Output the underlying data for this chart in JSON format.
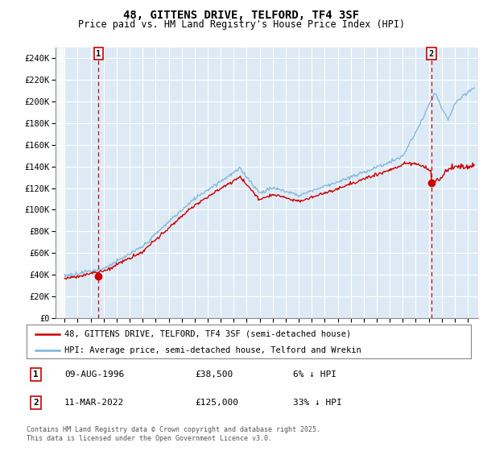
{
  "title": "48, GITTENS DRIVE, TELFORD, TF4 3SF",
  "subtitle": "Price paid vs. HM Land Registry's House Price Index (HPI)",
  "legend_line1": "48, GITTENS DRIVE, TELFORD, TF4 3SF (semi-detached house)",
  "legend_line2": "HPI: Average price, semi-detached house, Telford and Wrekin",
  "footnote": "Contains HM Land Registry data © Crown copyright and database right 2025.\nThis data is licensed under the Open Government Licence v3.0.",
  "sale1_date": "09-AUG-1996",
  "sale1_price": "£38,500",
  "sale1_hpi": "6% ↓ HPI",
  "sale2_date": "11-MAR-2022",
  "sale2_price": "£125,000",
  "sale2_hpi": "33% ↓ HPI",
  "hpi_color": "#7ab4d8",
  "price_color": "#cc0000",
  "background_color": "#ddeaf5",
  "grid_color": "#ffffff",
  "vline_color": "#cc0000",
  "ylim": [
    0,
    250000
  ],
  "yticks": [
    0,
    20000,
    40000,
    60000,
    80000,
    100000,
    120000,
    140000,
    160000,
    180000,
    200000,
    220000,
    240000
  ],
  "sale1_year": 1996.6,
  "sale2_year": 2022.2,
  "sale1_price_val": 38500,
  "sale2_price_val": 125000
}
